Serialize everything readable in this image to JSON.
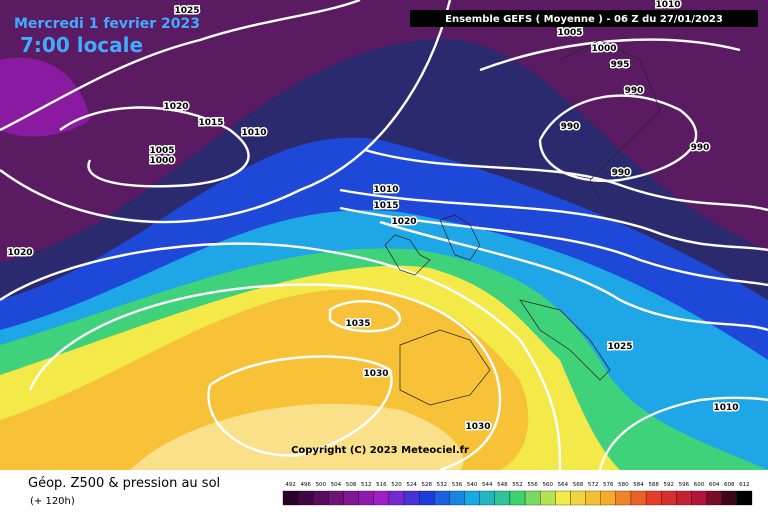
{
  "header": {
    "date": "Mercredi 1 fevrier 2023",
    "time": "7:00 locale",
    "run": "Ensemble GEFS  ( Moyenne )  -  06 Z du 27/01/2023"
  },
  "isobar_labels": [
    "1025",
    "1005",
    "1000",
    "995",
    "990",
    "1010",
    "1020",
    "1015",
    "1010",
    "990",
    "1005",
    "1000",
    "990",
    "990",
    "1010",
    "1015",
    "1020",
    "1020",
    "1035",
    "1025",
    "1030",
    "1010",
    "1030"
  ],
  "copyright": "Copyright (C) 2023 Meteociel.fr",
  "footer": {
    "title": "Géop. Z500 & pression au sol",
    "subtitle": "(+ 120h)"
  },
  "scale": {
    "ticks": [
      492,
      496,
      500,
      504,
      508,
      512,
      516,
      520,
      524,
      528,
      532,
      536,
      540,
      544,
      548,
      552,
      556,
      560,
      564,
      568,
      572,
      576,
      580,
      584,
      588,
      592,
      596,
      600,
      604,
      608,
      612
    ]
  }
}
